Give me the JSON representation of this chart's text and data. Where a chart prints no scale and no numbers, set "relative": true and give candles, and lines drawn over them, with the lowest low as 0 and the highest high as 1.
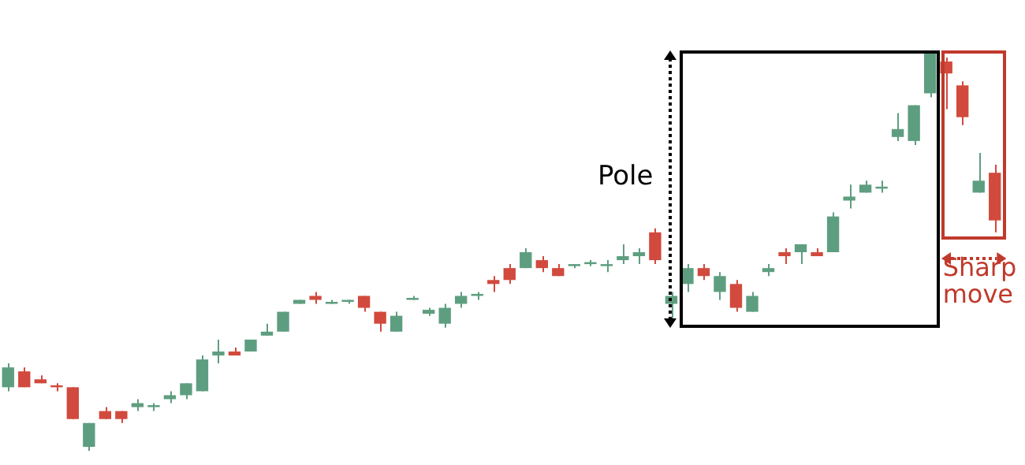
{
  "chart_data": {
    "type": "candlestick",
    "relative": true,
    "categories": [
      null,
      null,
      null,
      null,
      null,
      null,
      null,
      null,
      null,
      null,
      null,
      null,
      null,
      null,
      null,
      null,
      null,
      null,
      null,
      null,
      null,
      null,
      null,
      null,
      null,
      null,
      null,
      null,
      null,
      null,
      null,
      null,
      null,
      null,
      null,
      null,
      null,
      null,
      null,
      null,
      null,
      null,
      null,
      null,
      null,
      null,
      null,
      null,
      null,
      null,
      null,
      null,
      null,
      null,
      null,
      null,
      null,
      null,
      null,
      null,
      null,
      null
    ],
    "ohlc": [
      [
        0.16,
        0.22,
        0.15,
        0.21
      ],
      [
        0.2,
        0.21,
        0.16,
        0.16
      ],
      [
        0.18,
        0.19,
        0.17,
        0.17
      ],
      [
        0.165,
        0.17,
        0.15,
        0.16
      ],
      [
        0.16,
        0.16,
        0.08,
        0.08
      ],
      [
        0.01,
        0.07,
        0,
        0.07
      ],
      [
        0.1,
        0.11,
        0.08,
        0.08
      ],
      [
        0.1,
        0.1,
        0.07,
        0.08
      ],
      [
        0.11,
        0.13,
        0.1,
        0.12
      ],
      [
        0.11,
        0.12,
        0.1,
        0.115
      ],
      [
        0.13,
        0.15,
        0.12,
        0.14
      ],
      [
        0.14,
        0.17,
        0.13,
        0.17
      ],
      [
        0.15,
        0.24,
        0.15,
        0.23
      ],
      [
        0.24,
        0.28,
        0.22,
        0.25
      ],
      [
        0.25,
        0.26,
        0.24,
        0.24
      ],
      [
        0.25,
        0.28,
        0.25,
        0.28
      ],
      [
        0.29,
        0.32,
        0.29,
        0.3
      ],
      [
        0.3,
        0.35,
        0.3,
        0.35
      ],
      [
        0.37,
        0.38,
        0.37,
        0.38
      ],
      [
        0.39,
        0.4,
        0.37,
        0.38
      ],
      [
        0.37,
        0.38,
        0.37,
        0.375
      ],
      [
        0.375,
        0.38,
        0.37,
        0.38
      ],
      [
        0.39,
        0.39,
        0.35,
        0.36
      ],
      [
        0.35,
        0.35,
        0.3,
        0.32
      ],
      [
        0.3,
        0.35,
        0.3,
        0.34
      ],
      [
        0.38,
        0.39,
        0.38,
        0.385
      ],
      [
        0.345,
        0.36,
        0.34,
        0.355
      ],
      [
        0.32,
        0.37,
        0.31,
        0.36
      ],
      [
        0.37,
        0.4,
        0.36,
        0.39
      ],
      [
        0.39,
        0.4,
        0.38,
        0.395
      ],
      [
        0.43,
        0.44,
        0.4,
        0.42
      ],
      [
        0.46,
        0.47,
        0.42,
        0.43
      ],
      [
        0.46,
        0.51,
        0.46,
        0.5
      ],
      [
        0.48,
        0.49,
        0.45,
        0.46
      ],
      [
        0.46,
        0.47,
        0.44,
        0.44
      ],
      [
        0.465,
        0.47,
        0.46,
        0.47
      ],
      [
        0.47,
        0.48,
        0.465,
        0.475
      ],
      [
        0.465,
        0.48,
        0.45,
        0.47
      ],
      [
        0.48,
        0.52,
        0.47,
        0.49
      ],
      [
        0.49,
        0.51,
        0.47,
        0.5
      ],
      [
        0.55,
        0.56,
        0.47,
        0.48
      ],
      [
        0.37,
        0.4,
        0.32,
        0.39
      ],
      [
        0.42,
        0.47,
        0.4,
        0.46
      ],
      [
        0.46,
        0.47,
        0.43,
        0.44
      ],
      [
        0.4,
        0.45,
        0.38,
        0.44
      ],
      [
        0.42,
        0.43,
        0.35,
        0.36
      ],
      [
        0.35,
        0.4,
        0.35,
        0.39
      ],
      [
        0.45,
        0.47,
        0.44,
        0.46
      ],
      [
        0.5,
        0.51,
        0.47,
        0.49
      ],
      [
        0.5,
        0.52,
        0.47,
        0.52
      ],
      [
        0.5,
        0.51,
        0.49,
        0.49
      ],
      [
        0.5,
        0.6,
        0.5,
        0.59
      ],
      [
        0.63,
        0.67,
        0.61,
        0.64
      ],
      [
        0.65,
        0.68,
        0.65,
        0.67
      ],
      [
        0.66,
        0.68,
        0.65,
        0.665
      ],
      [
        0.79,
        0.85,
        0.78,
        0.81
      ],
      [
        0.78,
        0.87,
        0.77,
        0.87
      ],
      [
        0.9,
        1,
        0.89,
        1
      ],
      [
        0.98,
        0.99,
        0.86,
        0.95
      ],
      [
        0.92,
        0.93,
        0.82,
        0.84
      ],
      [
        0.65,
        0.75,
        0.65,
        0.68
      ],
      [
        0.7,
        0.72,
        0.55,
        0.58
      ]
    ],
    "annotations": [
      "Pole",
      "Sharp move"
    ]
  }
}
